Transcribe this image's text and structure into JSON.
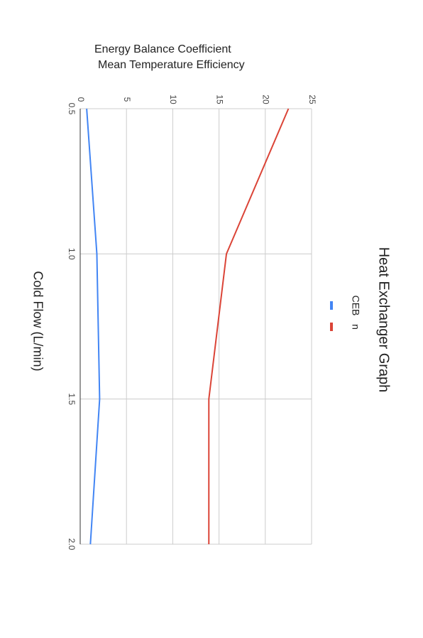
{
  "chart_data": {
    "type": "line",
    "title": "Heat Exchanger Graph",
    "xlabel": "Cold Flow (L/min)",
    "ylabel": [
      "Energy Balance Coefficient",
      "Mean Temperature Efficiency"
    ],
    "x": [
      0.5,
      1.0,
      1.5,
      2.0
    ],
    "series": [
      {
        "name": "CEB",
        "color": "#4285f4",
        "values": [
          0.7,
          1.8,
          2.1,
          1.1
        ]
      },
      {
        "name": "n",
        "color": "#db4437",
        "values": [
          22.5,
          15.8,
          13.9,
          13.9
        ]
      }
    ],
    "xlim": [
      0.5,
      2.0
    ],
    "xticks": [
      {
        "value": 0.5,
        "label": "0.5"
      },
      {
        "value": 1.0,
        "label": "1.0"
      },
      {
        "value": 1.5,
        "label": "1.5"
      },
      {
        "value": 2.0,
        "label": "2.0"
      }
    ],
    "ylim": [
      0,
      25
    ],
    "yticks": [
      0,
      5,
      10,
      15,
      20,
      25
    ],
    "grid": true
  }
}
